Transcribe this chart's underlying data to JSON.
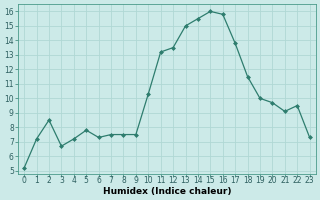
{
  "x": [
    0,
    1,
    2,
    3,
    4,
    5,
    6,
    7,
    8,
    9,
    10,
    11,
    12,
    13,
    14,
    15,
    16,
    17,
    18,
    19,
    20,
    21,
    22,
    23
  ],
  "y": [
    5.2,
    7.2,
    8.5,
    6.7,
    7.2,
    7.8,
    7.3,
    7.5,
    7.5,
    7.5,
    10.3,
    13.2,
    13.5,
    15.0,
    15.5,
    16.0,
    15.8,
    13.8,
    11.5,
    10.0,
    9.7,
    9.1,
    9.5,
    7.3
  ],
  "line_color": "#2e7d6e",
  "marker": "D",
  "marker_size": 2.0,
  "bg_color": "#cceae8",
  "grid_color": "#b0d8d4",
  "xlabel": "Humidex (Indice chaleur)",
  "ylabel": "",
  "xlim": [
    -0.5,
    23.5
  ],
  "ylim": [
    4.8,
    16.5
  ],
  "yticks": [
    5,
    6,
    7,
    8,
    9,
    10,
    11,
    12,
    13,
    14,
    15,
    16
  ],
  "xticks": [
    0,
    1,
    2,
    3,
    4,
    5,
    6,
    7,
    8,
    9,
    10,
    11,
    12,
    13,
    14,
    15,
    16,
    17,
    18,
    19,
    20,
    21,
    22,
    23
  ],
  "label_fontsize": 6.5,
  "tick_fontsize": 5.5
}
